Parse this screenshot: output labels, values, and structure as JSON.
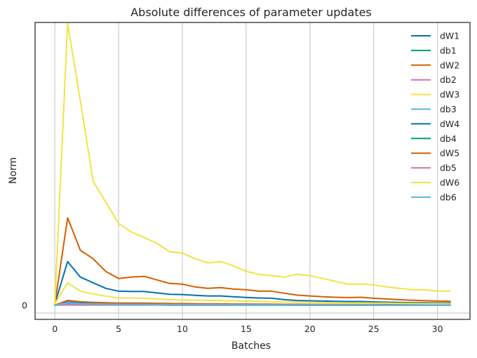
{
  "chart_data": {
    "type": "line",
    "title": "Absolute differences of parameter updates",
    "xlabel": "Batches",
    "ylabel": "Norm",
    "xlim": [
      -1.55,
      32.55
    ],
    "ylim": [
      -0.001,
      0.02005
    ],
    "xticks": [
      0,
      5,
      10,
      15,
      20,
      25,
      30
    ],
    "xtick_labels": [
      "0",
      "5",
      "10",
      "15",
      "20",
      "25",
      "30"
    ],
    "yticks": [
      0
    ],
    "ytick_labels": [
      "0"
    ],
    "grid": "vertical",
    "legend_position": "top-right",
    "x": [
      0,
      1,
      2,
      3,
      4,
      5,
      6,
      7,
      8,
      9,
      10,
      11,
      12,
      13,
      14,
      15,
      16,
      17,
      18,
      19,
      20,
      21,
      22,
      23,
      24,
      25,
      26,
      27,
      28,
      29,
      30,
      31
    ],
    "series": [
      {
        "name": "dW1",
        "color": "#0072b2",
        "values": [
          0.0001,
          0.0031,
          0.002,
          0.0016,
          0.0012,
          0.001,
          0.00098,
          0.00098,
          0.00088,
          0.00078,
          0.00076,
          0.0007,
          0.00066,
          0.00066,
          0.0006,
          0.00056,
          0.00052,
          0.0005,
          0.0004,
          0.00034,
          0.00032,
          0.0003,
          0.00028,
          0.00027,
          0.00027,
          0.00024,
          0.00022,
          0.0002,
          0.00019,
          0.00018,
          0.00017,
          0.00017
        ]
      },
      {
        "name": "db1",
        "color": "#009e73",
        "values": [
          1e-05,
          0.0001,
          8e-05,
          7e-05,
          6e-05,
          5e-05,
          5e-05,
          5e-05,
          4e-05,
          4e-05,
          4e-05,
          4e-05,
          3e-05,
          3e-05,
          3e-05,
          3e-05,
          3e-05,
          3e-05,
          3e-05,
          2e-05,
          2e-05,
          2e-05,
          2e-05,
          2e-05,
          2e-05,
          2e-05,
          2e-05,
          2e-05,
          2e-05,
          2e-05,
          2e-05,
          2e-05
        ]
      },
      {
        "name": "dW2",
        "color": "#d55e00",
        "values": [
          0.0001,
          0.0062,
          0.0039,
          0.0033,
          0.0024,
          0.0019,
          0.002,
          0.00205,
          0.0018,
          0.00155,
          0.0015,
          0.0013,
          0.0012,
          0.00125,
          0.00115,
          0.0011,
          0.001,
          0.001,
          0.00085,
          0.00072,
          0.00066,
          0.0006,
          0.00057,
          0.00055,
          0.00057,
          0.0005,
          0.00045,
          0.0004,
          0.00036,
          0.00033,
          0.0003,
          0.00029
        ]
      },
      {
        "name": "db2",
        "color": "#cc79a7",
        "values": [
          1e-05,
          8e-05,
          6e-05,
          5e-05,
          5e-05,
          4e-05,
          4e-05,
          4e-05,
          3e-05,
          3e-05,
          3e-05,
          3e-05,
          3e-05,
          3e-05,
          3e-05,
          2e-05,
          2e-05,
          2e-05,
          2e-05,
          2e-05,
          2e-05,
          2e-05,
          2e-05,
          2e-05,
          2e-05,
          2e-05,
          2e-05,
          2e-05,
          2e-05,
          2e-05,
          2e-05,
          2e-05
        ]
      },
      {
        "name": "dW3",
        "color": "#f0e442",
        "values": [
          0.0001,
          0.02,
          0.0145,
          0.0088,
          0.0073,
          0.0058,
          0.0052,
          0.0048,
          0.0044,
          0.0038,
          0.0037,
          0.0033,
          0.003,
          0.0031,
          0.0028,
          0.0024,
          0.0022,
          0.0021,
          0.002,
          0.0022,
          0.0021,
          0.0019,
          0.0017,
          0.0015,
          0.0015,
          0.00145,
          0.0013,
          0.0012,
          0.0011,
          0.0011,
          0.001,
          0.001
        ]
      },
      {
        "name": "db3",
        "color": "#56b4e9",
        "values": [
          1e-05,
          0.00025,
          0.00015,
          0.00012,
          0.0001,
          8e-05,
          8e-05,
          8e-05,
          7e-05,
          6e-05,
          6e-05,
          6e-05,
          5e-05,
          5e-05,
          5e-05,
          4e-05,
          4e-05,
          4e-05,
          4e-05,
          3e-05,
          3e-05,
          3e-05,
          3e-05,
          3e-05,
          3e-05,
          3e-05,
          3e-05,
          3e-05,
          3e-05,
          2e-05,
          2e-05,
          2e-05
        ]
      },
      {
        "name": "dW4",
        "color": "#0072b2",
        "values": [
          1e-05,
          0.00022,
          0.00016,
          0.00013,
          0.00011,
          0.0001,
          0.0001,
          0.0001,
          9e-05,
          8e-05,
          8e-05,
          7e-05,
          7e-05,
          7e-05,
          6e-05,
          6e-05,
          6e-05,
          5e-05,
          5e-05,
          5e-05,
          5e-05,
          4e-05,
          4e-05,
          4e-05,
          4e-05,
          4e-05,
          4e-05,
          3e-05,
          3e-05,
          3e-05,
          3e-05,
          3e-05
        ]
      },
      {
        "name": "db4",
        "color": "#009e73",
        "values": [
          1e-05,
          3e-05,
          2e-05,
          2e-05,
          2e-05,
          2e-05,
          2e-05,
          2e-05,
          2e-05,
          1e-05,
          1e-05,
          1e-05,
          1e-05,
          1e-05,
          1e-05,
          1e-05,
          1e-05,
          1e-05,
          1e-05,
          1e-05,
          1e-05,
          1e-05,
          1e-05,
          1e-05,
          1e-05,
          1e-05,
          1e-05,
          1e-05,
          1e-05,
          1e-05,
          1e-05,
          1e-05
        ]
      },
      {
        "name": "dW5",
        "color": "#d55e00",
        "values": [
          1e-05,
          0.00035,
          0.00025,
          0.00021,
          0.00018,
          0.00016,
          0.00016,
          0.00016,
          0.00014,
          0.00013,
          0.00012,
          0.00011,
          0.0001,
          0.0001,
          9e-05,
          9e-05,
          8e-05,
          8e-05,
          7e-05,
          7e-05,
          6e-05,
          6e-05,
          6e-05,
          5e-05,
          5e-05,
          5e-05,
          5e-05,
          4e-05,
          4e-05,
          4e-05,
          4e-05,
          4e-05
        ]
      },
      {
        "name": "db5",
        "color": "#cc79a7",
        "values": [
          1e-05,
          5e-05,
          4e-05,
          3e-05,
          3e-05,
          3e-05,
          3e-05,
          3e-05,
          2e-05,
          2e-05,
          2e-05,
          2e-05,
          2e-05,
          2e-05,
          2e-05,
          2e-05,
          2e-05,
          2e-05,
          2e-05,
          1e-05,
          1e-05,
          1e-05,
          1e-05,
          1e-05,
          1e-05,
          1e-05,
          1e-05,
          1e-05,
          1e-05,
          1e-05,
          1e-05,
          1e-05
        ]
      },
      {
        "name": "dW6",
        "color": "#f0e442",
        "values": [
          0.0001,
          0.0016,
          0.001,
          0.0008,
          0.00065,
          0.00052,
          0.00052,
          0.0005,
          0.00045,
          0.0004,
          0.00038,
          0.00037,
          0.00035,
          0.00034,
          0.00032,
          0.0003,
          0.00028,
          0.00026,
          0.00024,
          0.00022,
          0.0002,
          0.00019,
          0.00018,
          0.00017,
          0.00017,
          0.00016,
          0.00015,
          0.00014,
          0.00013,
          0.00012,
          0.00012,
          0.00011
        ]
      },
      {
        "name": "db6",
        "color": "#56b4e9",
        "values": [
          1e-05,
          0.00018,
          0.00012,
          0.0001,
          8e-05,
          7e-05,
          7e-05,
          7e-05,
          6e-05,
          6e-05,
          5e-05,
          5e-05,
          5e-05,
          5e-05,
          4e-05,
          4e-05,
          4e-05,
          4e-05,
          3e-05,
          3e-05,
          3e-05,
          3e-05,
          3e-05,
          3e-05,
          3e-05,
          3e-05,
          2e-05,
          2e-05,
          2e-05,
          2e-05,
          2e-05,
          2e-05
        ]
      }
    ]
  }
}
